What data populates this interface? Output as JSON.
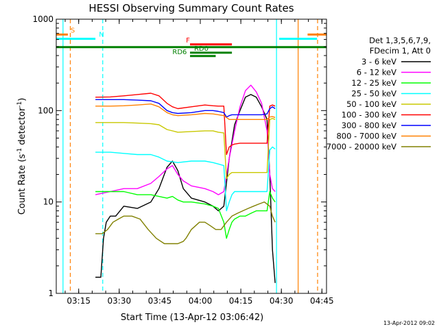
{
  "chart_data": {
    "type": "line",
    "title": "HESSI Observing Summary Count Rates",
    "xlabel": "Start Time (13-Apr-12 03:06:42)",
    "ylabel": "Count Rate (s",
    "ylabel_sup": "-1",
    "ylabel_tail": " detector",
    "ylabel_close": ")",
    "x_unit": "minutes after 03:06:42",
    "xlim": [
      0,
      100
    ],
    "ylim": [
      1,
      1000
    ],
    "yscale": "log",
    "x_ticks": [
      {
        "t": 8.3,
        "label": "03:15"
      },
      {
        "t": 23.3,
        "label": "03:30"
      },
      {
        "t": 38.3,
        "label": "03:45"
      },
      {
        "t": 53.3,
        "label": "04:00"
      },
      {
        "t": 68.3,
        "label": "04:15"
      },
      {
        "t": 83.3,
        "label": "04:30"
      },
      {
        "t": 98.3,
        "label": "04:45"
      }
    ],
    "y_ticks": [
      {
        "v": 1,
        "label": "1"
      },
      {
        "v": 10,
        "label": "10"
      },
      {
        "v": 100,
        "label": "100"
      },
      {
        "v": 1000,
        "label": "1000"
      }
    ],
    "legend_placement": "right",
    "legend_header": [
      "Det 1,3,5,6,7,9,",
      "FDecim 1, Att 0"
    ],
    "series": [
      {
        "name": "3 - 6 keV",
        "color": "#000000",
        "x": [
          14.5,
          16.5,
          17.5,
          18.5,
          20,
          22,
          25,
          30,
          35,
          38,
          41,
          43,
          45,
          47,
          50,
          55,
          58,
          60,
          62,
          64,
          66,
          68,
          70,
          72,
          74,
          76,
          78,
          79,
          80,
          81
        ],
        "y": [
          1.5,
          1.5,
          4,
          6,
          7,
          7,
          9,
          8.5,
          10,
          14,
          24,
          28,
          22,
          14,
          11,
          10,
          9,
          8,
          9,
          30,
          70,
          100,
          140,
          150,
          140,
          110,
          80,
          20,
          3,
          1.3
        ]
      },
      {
        "name": "6 - 12 keV",
        "color": "#ff00ff",
        "x": [
          14.5,
          20,
          25,
          30,
          35,
          38,
          41,
          43,
          45,
          47,
          50,
          55,
          58,
          60,
          62,
          64,
          66,
          68,
          70,
          72,
          74,
          76,
          78,
          79,
          80,
          81
        ],
        "y": [
          12,
          13,
          14,
          14,
          16,
          19,
          23,
          25,
          20,
          17,
          15,
          14,
          13,
          12,
          13,
          30,
          60,
          110,
          165,
          190,
          160,
          120,
          60,
          20,
          14,
          13
        ]
      },
      {
        "name": "12 - 25 keV",
        "color": "#00ff00",
        "x": [
          14.5,
          20,
          25,
          30,
          35,
          38,
          41,
          43,
          45,
          47,
          50,
          55,
          58,
          60,
          62,
          63,
          64,
          65,
          66,
          68,
          70,
          72,
          74,
          76,
          78,
          79,
          80,
          81
        ],
        "y": [
          13,
          13,
          13,
          12,
          12,
          11.5,
          11,
          11.5,
          10.5,
          10,
          10,
          9.5,
          9,
          8.5,
          6,
          4,
          5,
          6,
          6.5,
          7,
          7,
          7.5,
          8,
          8,
          8,
          13,
          11,
          10
        ]
      },
      {
        "name": "25 - 50 keV",
        "color": "#00ffff",
        "x": [
          14.5,
          20,
          25,
          30,
          35,
          38,
          41,
          45,
          50,
          55,
          58,
          60,
          62,
          63,
          64,
          65,
          66,
          68,
          70,
          72,
          74,
          76,
          78,
          79,
          80,
          81
        ],
        "y": [
          35,
          35,
          34,
          33,
          33,
          31,
          28,
          27,
          28,
          28,
          27,
          26,
          25,
          8,
          10,
          12,
          13,
          13,
          13,
          13,
          13,
          13,
          13,
          37,
          40,
          38
        ]
      },
      {
        "name": "50 - 100 keV",
        "color": "#c8c800",
        "x": [
          14.5,
          20,
          25,
          30,
          35,
          38,
          41,
          45,
          50,
          55,
          58,
          60,
          62,
          63,
          64,
          65,
          66,
          68,
          70,
          72,
          74,
          76,
          78,
          79,
          80,
          81
        ],
        "y": [
          74,
          74,
          74,
          73,
          72,
          70,
          62,
          58,
          59,
          60,
          60,
          58,
          57,
          18,
          20,
          21,
          21,
          21,
          21,
          21,
          21,
          21,
          21,
          80,
          82,
          80
        ]
      },
      {
        "name": "100 - 300 keV",
        "color": "#ff0000",
        "x": [
          14.5,
          20,
          25,
          30,
          35,
          38,
          41,
          43,
          45,
          50,
          55,
          58,
          60,
          62,
          63,
          64,
          65,
          66,
          68,
          70,
          72,
          74,
          76,
          78,
          79,
          80,
          81
        ],
        "y": [
          140,
          141,
          145,
          150,
          155,
          145,
          120,
          110,
          105,
          110,
          115,
          113,
          112,
          112,
          33,
          40,
          42,
          43,
          44,
          44,
          44,
          44,
          44,
          44,
          112,
          115,
          112
        ]
      },
      {
        "name": "300 - 800 keV",
        "color": "#0000ff",
        "x": [
          14.5,
          20,
          25,
          30,
          35,
          38,
          41,
          43,
          45,
          50,
          55,
          58,
          60,
          62,
          63,
          64,
          65,
          66,
          68,
          70,
          72,
          74,
          76,
          78,
          79,
          80,
          81
        ],
        "y": [
          132,
          132,
          132,
          130,
          128,
          120,
          100,
          95,
          93,
          95,
          100,
          100,
          98,
          95,
          85,
          88,
          90,
          90,
          90,
          90,
          90,
          90,
          90,
          92,
          105,
          110,
          105
        ]
      },
      {
        "name": "800 - 7000 keV",
        "color": "#ff8000",
        "x": [
          14.5,
          20,
          25,
          30,
          35,
          38,
          41,
          43,
          45,
          50,
          55,
          58,
          60,
          62,
          64,
          66,
          68,
          70,
          72,
          74,
          76,
          78,
          79,
          80,
          81
        ],
        "y": [
          112,
          112,
          113,
          115,
          118,
          110,
          95,
          90,
          88,
          90,
          93,
          92,
          90,
          88,
          80,
          80,
          80,
          80,
          80,
          80,
          80,
          80,
          85,
          86,
          84
        ]
      },
      {
        "name": "7000 - 20000 keV",
        "color": "#808000",
        "x": [
          14.5,
          17,
          19,
          21,
          23,
          25,
          28,
          31,
          34,
          37,
          40,
          43,
          45,
          47,
          48,
          50,
          53,
          55,
          57,
          59,
          61,
          63,
          65,
          67,
          69,
          71,
          73,
          75,
          77,
          79,
          80,
          81
        ],
        "y": [
          4.5,
          4.5,
          5,
          6,
          6.5,
          7,
          7,
          6.5,
          5,
          4,
          3.5,
          3.5,
          3.5,
          3.7,
          4,
          5,
          6,
          6,
          5.5,
          5,
          5,
          6,
          7,
          7.5,
          8,
          8.5,
          9,
          9.5,
          10,
          9,
          7,
          6
        ]
      }
    ],
    "flags": [
      {
        "label": "S",
        "color": "#ff8000",
        "x": [
          0,
          4.3
        ],
        "y": 680,
        "label_x": 5.3
      },
      {
        "label": "N",
        "color": "#00ffff",
        "x": [
          0,
          14.5
        ],
        "y": 610,
        "label_x": 15.8
      },
      {
        "label": "F",
        "color": "#ff0000",
        "x": [
          49.5,
          65
        ],
        "y": 530,
        "label_x": 48.0
      },
      {
        "label": "RD0",
        "color": "#008000",
        "x": [
          49.5,
          65
        ],
        "y": 430,
        "label_x": 51.0
      },
      {
        "label": "RD6",
        "color": "#008000",
        "x": [
          49.5,
          59
        ],
        "y": 395,
        "label_x": 43.0
      },
      {
        "label": "",
        "color": "#008000",
        "x": [
          0,
          100
        ],
        "y": 495,
        "label_x": 0
      },
      {
        "label": "",
        "color": "#00ffff",
        "x": [
          82.5,
          96.5
        ],
        "y": 610,
        "label_x": 0
      },
      {
        "label": "",
        "color": "#ff8000",
        "x": [
          93,
          100
        ],
        "y": 680,
        "label_x": 0
      }
    ],
    "vlines": [
      {
        "x": 5.2,
        "color": "#ff8000",
        "style": "dash"
      },
      {
        "x": 17.2,
        "color": "#00ffff",
        "style": "dash"
      },
      {
        "x": 96.7,
        "color": "#ff8000",
        "style": "dash"
      },
      {
        "x": 2.5,
        "color": "#00ffff",
        "style": "solid"
      },
      {
        "x": 81.5,
        "color": "#00ffff",
        "style": "solid"
      },
      {
        "x": 89.5,
        "color": "#ff8000",
        "style": "solid"
      }
    ],
    "timestamp": "13-Apr-2012 09:02"
  }
}
